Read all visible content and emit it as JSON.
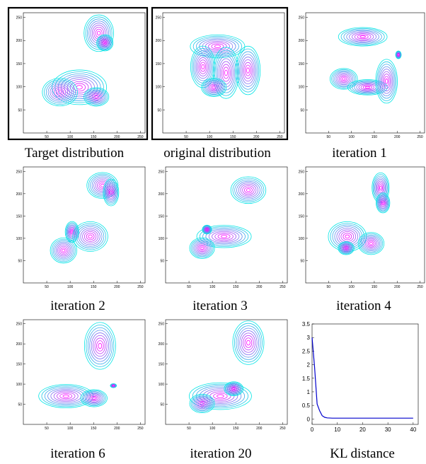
{
  "figure": {
    "panels": [
      {
        "caption": "Target distribution",
        "highlight": true
      },
      {
        "caption": "original distribution",
        "highlight": true
      },
      {
        "caption": "iteration 1",
        "highlight": false
      },
      {
        "caption": "iteration 2",
        "highlight": false
      },
      {
        "caption": "iteration 3",
        "highlight": false
      },
      {
        "caption": "iteration 4",
        "highlight": false
      },
      {
        "caption": "iteration 6",
        "highlight": false
      },
      {
        "caption": "iteration 20",
        "highlight": false
      },
      {
        "caption": "KL distance",
        "highlight": false
      }
    ],
    "contour_axis": {
      "xticks": [
        "50",
        "100",
        "150",
        "200",
        "250"
      ],
      "yticks": [
        "50",
        "100",
        "150",
        "200",
        "250"
      ]
    },
    "contour_colors": {
      "outer": "#00e5e5",
      "inner": "#ff00ff"
    }
  },
  "chart_data": {
    "type": "line",
    "title": "KL distance",
    "xlabel": "",
    "ylabel": "",
    "x": [
      0,
      1,
      2,
      3,
      4,
      5,
      6,
      8,
      10,
      15,
      20,
      25,
      30,
      35,
      40
    ],
    "series": [
      {
        "values": [
          3.0,
          1.9,
          0.55,
          0.3,
          0.12,
          0.06,
          0.04,
          0.03,
          0.03,
          0.03,
          0.03,
          0.03,
          0.03,
          0.03,
          0.03
        ],
        "color": "#0000cc"
      }
    ],
    "xlim": [
      0,
      42
    ],
    "ylim": [
      -0.2,
      3.5
    ],
    "xticks": [
      "0",
      "10",
      "20",
      "30",
      "40"
    ],
    "yticks": [
      "0",
      "0.5",
      "1",
      "1.5",
      "2",
      "2.5",
      "3",
      "3.5"
    ],
    "grid": false
  }
}
